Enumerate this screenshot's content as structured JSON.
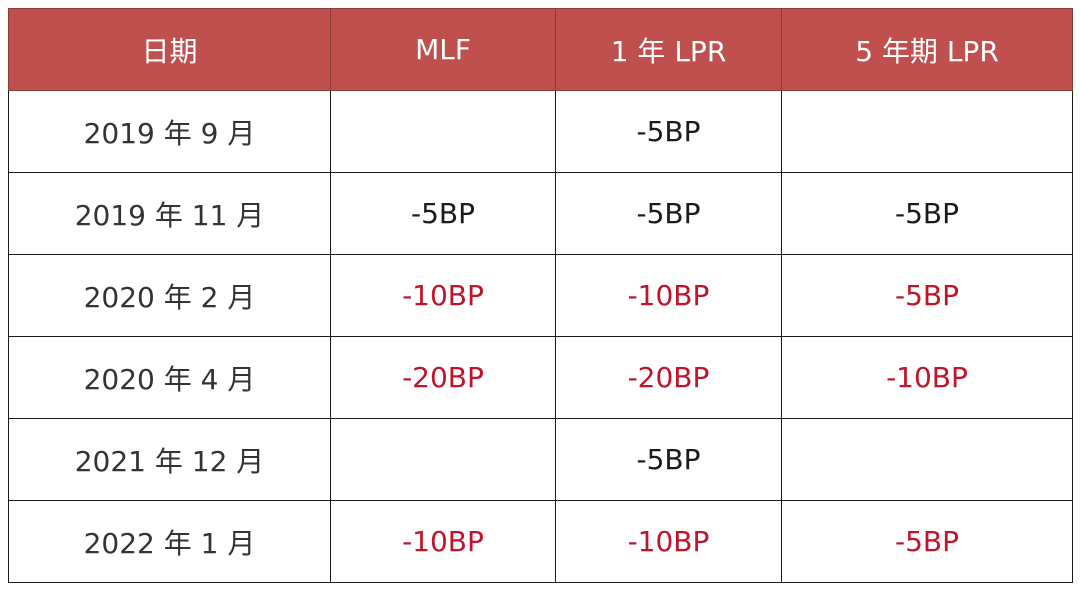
{
  "chart_data": {
    "type": "table",
    "columns": [
      "日期",
      "MLF",
      "1 年 LPR",
      "5 年期 LPR"
    ],
    "rows": [
      {
        "date": "2019 年 9 月",
        "mlf": "",
        "lpr1y": "-5BP",
        "lpr5y": "",
        "highlight": false
      },
      {
        "date": "2019 年 11 月",
        "mlf": "-5BP",
        "lpr1y": "-5BP",
        "lpr5y": "-5BP",
        "highlight": false
      },
      {
        "date": "2020 年 2 月",
        "mlf": "-10BP",
        "lpr1y": "-10BP",
        "lpr5y": "-5BP",
        "highlight": true
      },
      {
        "date": "2020 年 4 月",
        "mlf": "-20BP",
        "lpr1y": "-20BP",
        "lpr5y": "-10BP",
        "highlight": true
      },
      {
        "date": "2021 年 12 月",
        "mlf": "",
        "lpr1y": "-5BP",
        "lpr5y": "",
        "highlight": false
      },
      {
        "date": "2022 年 1 月",
        "mlf": "-10BP",
        "lpr1y": "-10BP",
        "lpr5y": "-5BP",
        "highlight": true
      }
    ]
  },
  "colors": {
    "header_bg": "#c0504d",
    "header_text": "#ffffff",
    "highlight_text": "#c0142b",
    "normal_text": "#1a1a1a"
  }
}
